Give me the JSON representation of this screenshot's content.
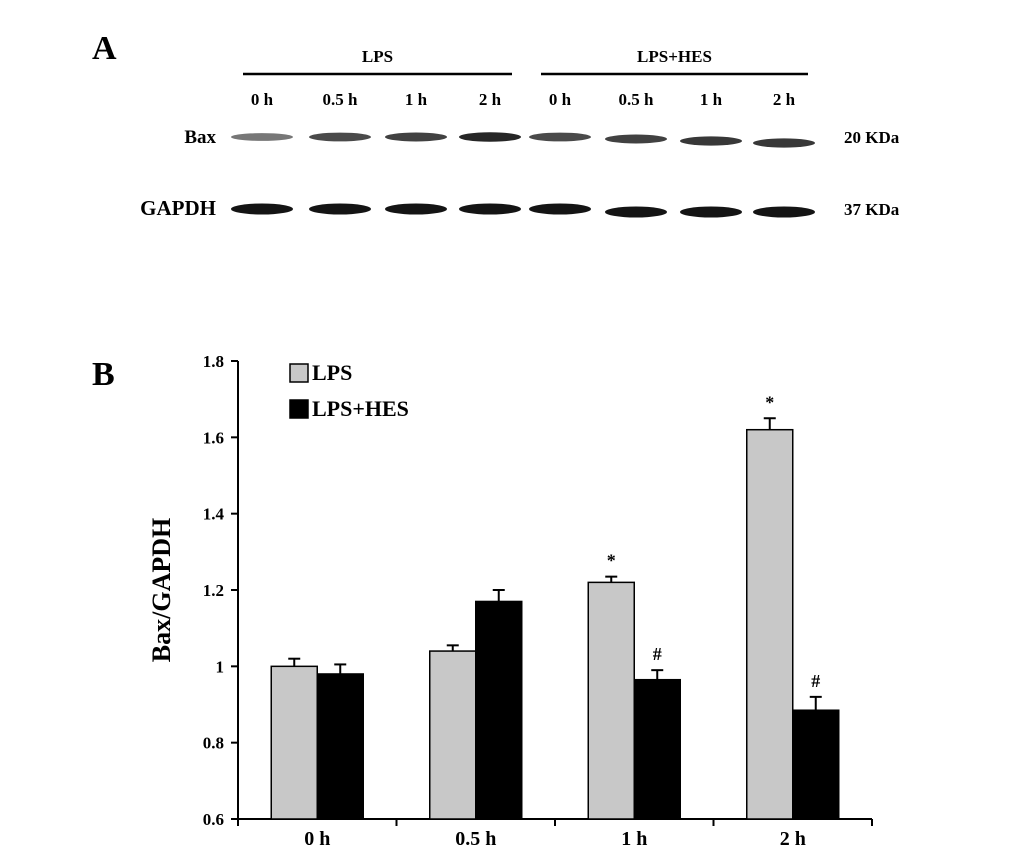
{
  "panel_a": {
    "letter": "A",
    "group_labels": [
      "LPS",
      "LPS+HES"
    ],
    "lane_labels": [
      "0 h",
      "0.5 h",
      "1 h",
      "2 h",
      "0 h",
      "0.5 h",
      "1 h",
      "2 h"
    ],
    "rows": [
      {
        "label": "Bax",
        "size": "20 KDa",
        "band_intensity": [
          0.45,
          0.7,
          0.75,
          0.9,
          0.7,
          0.75,
          0.8,
          0.8
        ]
      },
      {
        "label": "GAPDH",
        "size": "37 KDa",
        "band_intensity": [
          1,
          1,
          1,
          1,
          1,
          1,
          1,
          1
        ]
      }
    ]
  },
  "panel_b": {
    "letter": "B"
  },
  "chart_data": {
    "type": "bar",
    "categories": [
      "0 h",
      "0.5 h",
      "1 h",
      "2 h"
    ],
    "series": [
      {
        "name": "LPS",
        "color": "#c8c8c8",
        "values": [
          1.0,
          1.04,
          1.22,
          1.62
        ],
        "errors": [
          0.02,
          0.015,
          0.015,
          0.03
        ],
        "annotations": [
          "",
          "",
          "*",
          "*"
        ]
      },
      {
        "name": "LPS+HES",
        "color": "#000000",
        "values": [
          0.98,
          1.17,
          0.965,
          0.885
        ],
        "errors": [
          0.025,
          0.03,
          0.025,
          0.035
        ],
        "annotations": [
          "",
          "",
          "#",
          "#"
        ]
      }
    ],
    "ylabel": "Bax/GAPDH",
    "xlabel": "",
    "ylim": [
      0.6,
      1.8
    ],
    "yticks": [
      "0.6",
      "0.8",
      "1",
      "1.2",
      "1.4",
      "1.6",
      "1.8"
    ],
    "legend_position": "top-left",
    "grid": false
  }
}
